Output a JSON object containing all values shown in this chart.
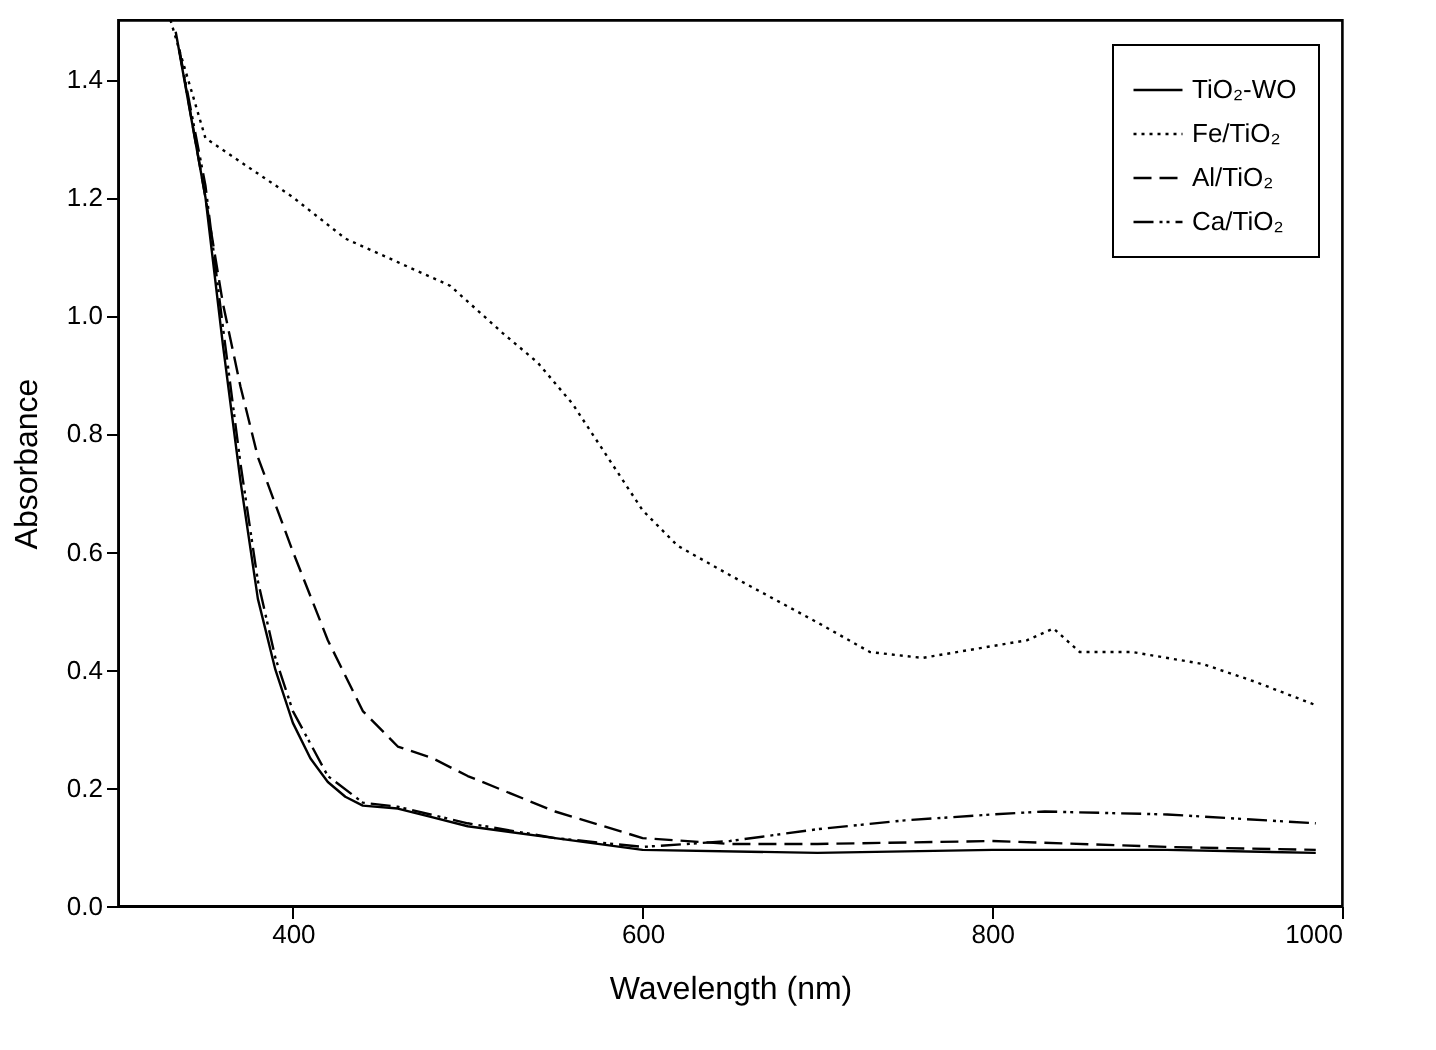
{
  "chart_data": {
    "type": "line",
    "xlabel": "Wavelength (nm)",
    "ylabel": "Absorbance",
    "xlim": [
      300,
      1000
    ],
    "xticks": [
      400,
      600,
      800,
      1000
    ],
    "ylim": [
      0,
      1.5
    ],
    "yticks": [
      {
        "value": 0,
        "label": "0.0"
      },
      0.2,
      0.4,
      0.6,
      0.8,
      {
        "value": 1,
        "label": "1.0"
      },
      1.2,
      1.4
    ],
    "grid": false,
    "legend": "top right",
    "marker": "none",
    "series": [
      {
        "name": "TiO₂-WO",
        "color": "#000000",
        "line_style": "solid",
        "x": [
          333,
          350,
          360,
          370,
          380,
          390,
          400,
          410,
          420,
          430,
          440,
          460,
          480,
          500,
          550,
          600,
          700,
          800,
          900,
          985
        ],
        "values": [
          1.48,
          1.2,
          0.95,
          0.72,
          0.52,
          0.4,
          0.31,
          0.25,
          0.21,
          0.185,
          0.17,
          0.165,
          0.15,
          0.135,
          0.115,
          0.095,
          0.09,
          0.095,
          0.095,
          0.09
        ]
      },
      {
        "name": "Fe/TiO₂",
        "color": "#000000",
        "line_style": "dotted",
        "x": [
          330,
          340,
          350,
          370,
          400,
          430,
          460,
          490,
          520,
          540,
          560,
          580,
          600,
          620,
          650,
          700,
          730,
          760,
          800,
          820,
          835,
          850,
          880,
          920,
          950,
          985
        ],
        "values": [
          1.5,
          1.4,
          1.3,
          1.26,
          1.2,
          1.13,
          1.09,
          1.05,
          0.97,
          0.92,
          0.85,
          0.76,
          0.67,
          0.61,
          0.56,
          0.48,
          0.43,
          0.42,
          0.44,
          0.45,
          0.47,
          0.43,
          0.43,
          0.41,
          0.38,
          0.34
        ]
      },
      {
        "name": "Al/TiO₂",
        "color": "#000000",
        "line_style": "dashed",
        "x": [
          335,
          350,
          360,
          370,
          380,
          400,
          420,
          440,
          460,
          480,
          500,
          550,
          600,
          650,
          700,
          800,
          900,
          985
        ],
        "values": [
          1.45,
          1.2,
          1.02,
          0.88,
          0.76,
          0.6,
          0.45,
          0.33,
          0.27,
          0.25,
          0.22,
          0.16,
          0.115,
          0.105,
          0.105,
          0.11,
          0.1,
          0.095
        ]
      },
      {
        "name": "Ca/TiO₂",
        "color": "#000000",
        "line_style": "dashdot",
        "x": [
          335,
          350,
          360,
          370,
          380,
          390,
          400,
          420,
          440,
          460,
          500,
          550,
          600,
          650,
          700,
          750,
          800,
          830,
          900,
          985
        ],
        "values": [
          1.45,
          1.22,
          0.98,
          0.75,
          0.55,
          0.42,
          0.33,
          0.22,
          0.175,
          0.168,
          0.14,
          0.115,
          0.1,
          0.11,
          0.13,
          0.145,
          0.155,
          0.16,
          0.155,
          0.14
        ]
      }
    ]
  }
}
